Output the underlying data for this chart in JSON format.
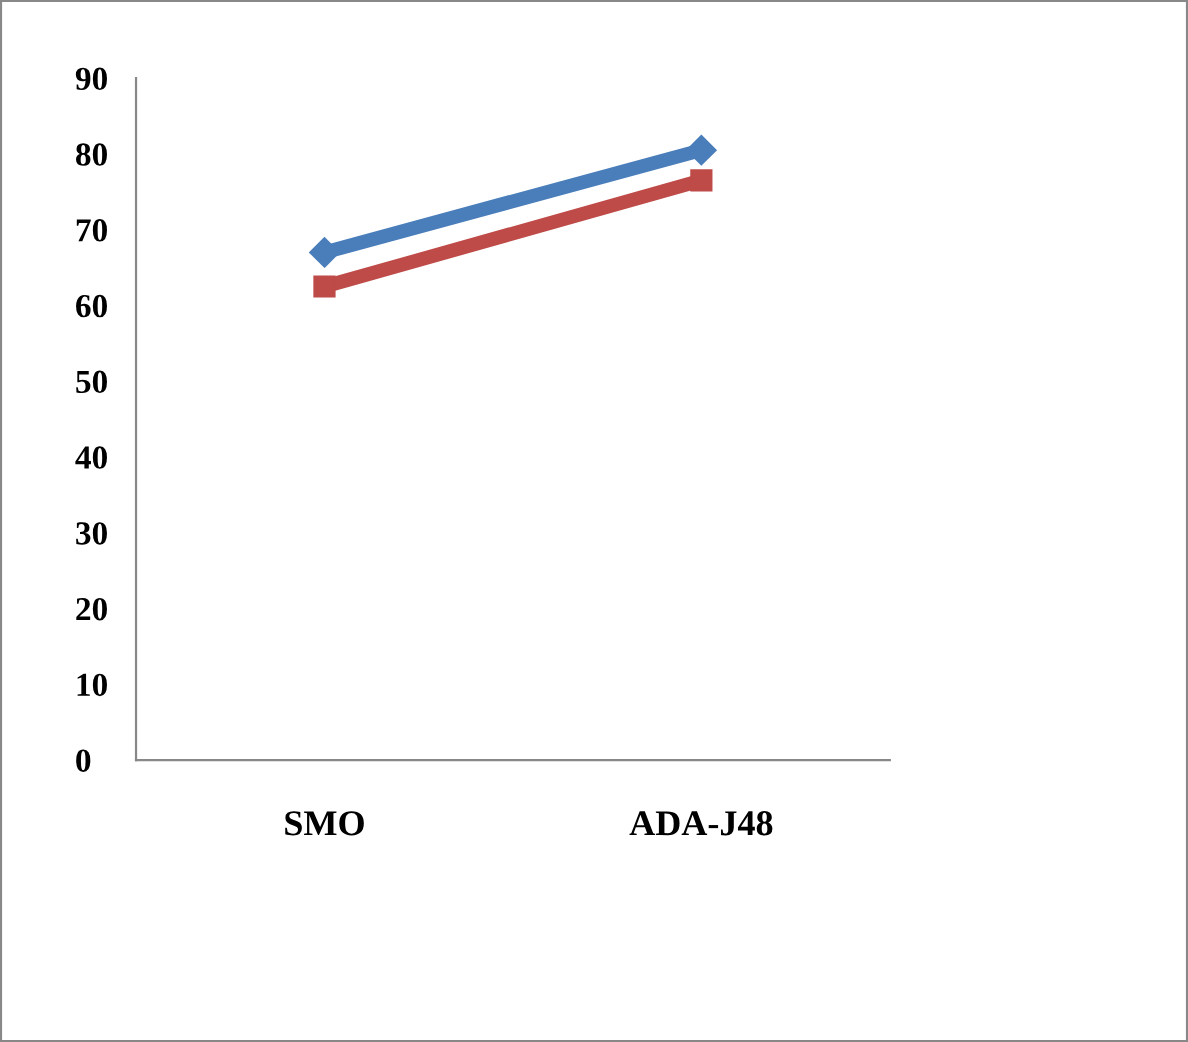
{
  "chart_data": {
    "type": "line",
    "categories": [
      "SMO",
      "ADA-J48"
    ],
    "series": [
      {
        "color": "#4a7ebb",
        "values": [
          67,
          80.5
        ],
        "marker": "diamond"
      },
      {
        "color": "#be4b48",
        "values": [
          62.5,
          76.5
        ],
        "marker": "square"
      }
    ],
    "ylim": [
      0,
      90
    ],
    "yticks": [
      0,
      10,
      20,
      30,
      40,
      50,
      60,
      70,
      80,
      90
    ],
    "grid": false,
    "legend": false,
    "line_style": "solid"
  }
}
